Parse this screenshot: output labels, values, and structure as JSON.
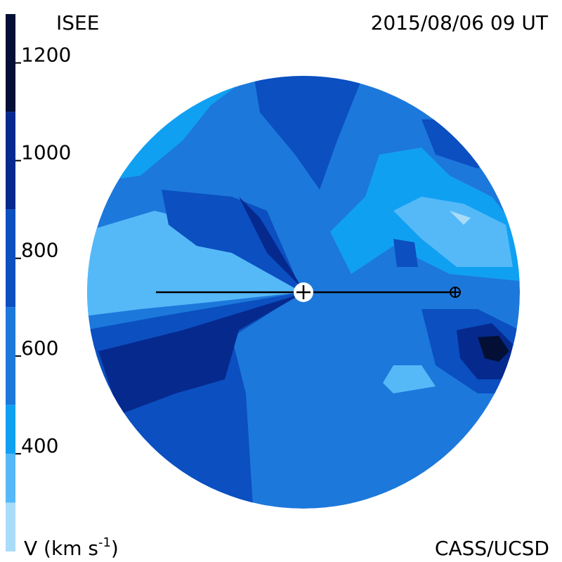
{
  "header": {
    "left": "ISEE",
    "right": "2015/08/06 09 UT"
  },
  "colorbar": {
    "ylim": [
      200,
      1300
    ],
    "yticks": [
      400,
      600,
      800,
      1000,
      1200
    ],
    "levels": [
      200,
      300,
      400,
      500,
      700,
      900,
      1100,
      1300
    ],
    "colors": [
      "#a9dcf9",
      "#55b9f8",
      "#10a0f2",
      "#1d78db",
      "#0b4fc0",
      "#06298e",
      "#030f35"
    ],
    "label": {
      "text": "V (km s",
      "superscript": "-1",
      "close": ")"
    }
  },
  "footer": "CASS/UCSD"
}
